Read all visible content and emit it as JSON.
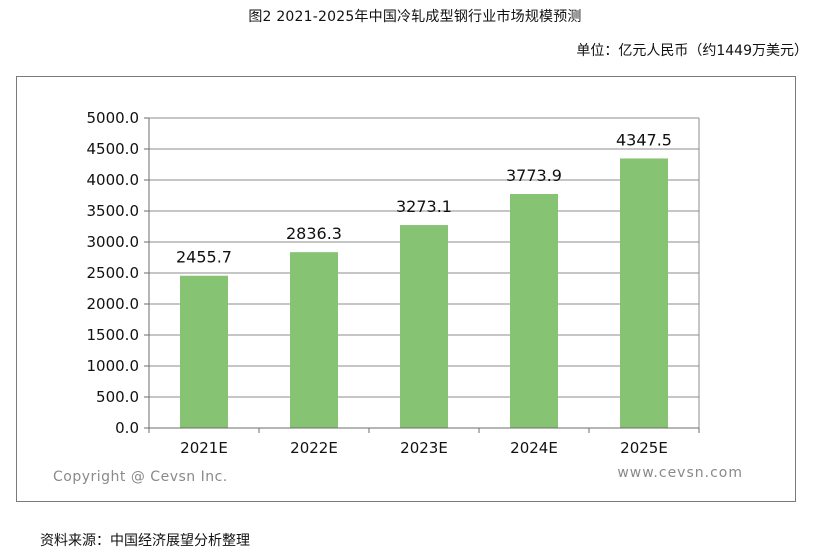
{
  "header": {
    "title": "图2 2021-2025年中国冷轧成型钢行业市场规模预测",
    "unit": "单位：亿元人民币（约1449万美元）"
  },
  "footer": {
    "source": "资料来源：中国经济展望分析整理"
  },
  "watermark": {
    "left": "Copyright @ Cevsn Inc.",
    "right": "www.cevsn.com"
  },
  "colors": {
    "bar": "#86c373",
    "grid": "#8c8c8c",
    "axis": "#6e6e6e",
    "watermark": "#8a8a8a"
  },
  "chart_data": {
    "type": "bar",
    "title": "",
    "xlabel": "",
    "ylabel": "",
    "categories": [
      "2021E",
      "2022E",
      "2023E",
      "2024E",
      "2025E"
    ],
    "values": [
      2455.7,
      2836.3,
      3273.1,
      3773.9,
      4347.5
    ],
    "data_labels": [
      "2455.7",
      "2836.3",
      "3273.1",
      "3773.9",
      "4347.5"
    ],
    "ylim": [
      0,
      5000
    ],
    "yticks": [
      0,
      500,
      1000,
      1500,
      2000,
      2500,
      3000,
      3500,
      4000,
      4500,
      5000
    ],
    "ytick_labels": [
      "0.0",
      "500.0",
      "1000.0",
      "1500.0",
      "2000.0",
      "2500.0",
      "3000.0",
      "3500.0",
      "4000.0",
      "4500.0",
      "5000.0"
    ],
    "grid": true,
    "legend": "none"
  }
}
